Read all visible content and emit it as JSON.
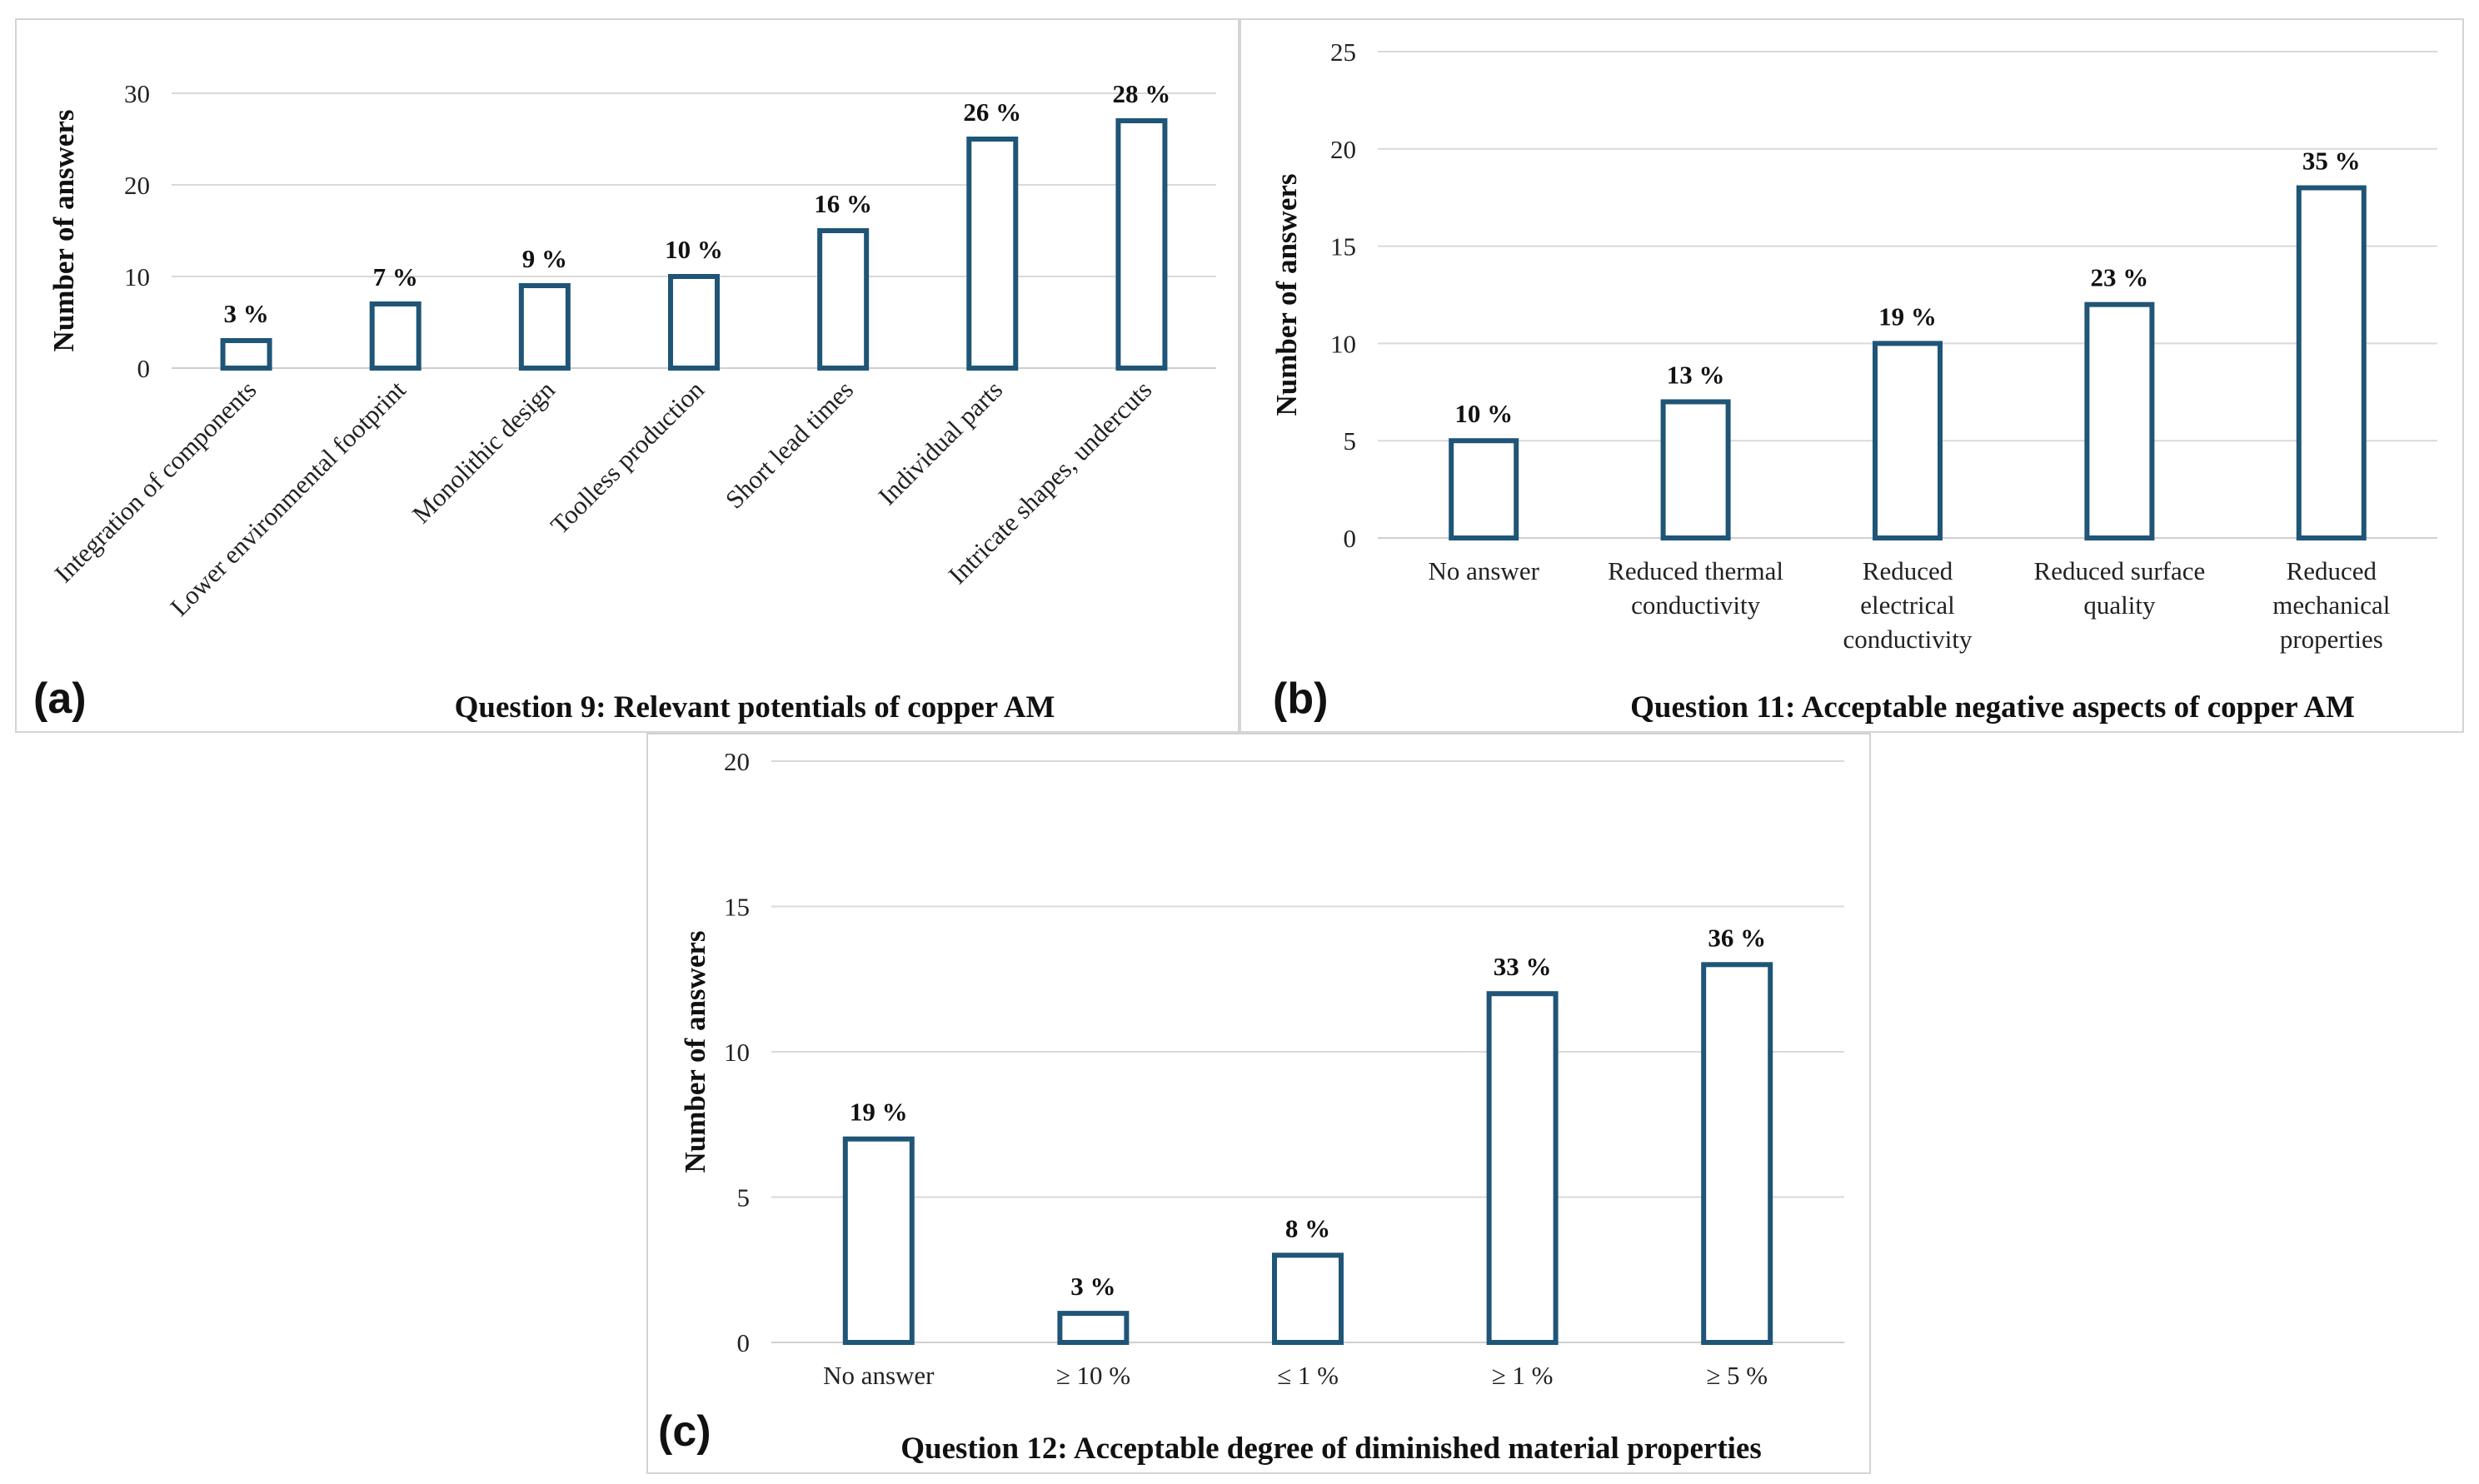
{
  "chart_data": [
    {
      "type": "bar",
      "panel_label": "(a)",
      "title": "Question 9: Relevant potentials of copper AM",
      "ylabel": "Number of answers",
      "xlabel": "",
      "ylim": [
        0,
        30
      ],
      "yticks": [
        0,
        10,
        20,
        30
      ],
      "categories": [
        "Integration of components",
        "Lower environmental footprint",
        "Monolithic design",
        "Toolless production",
        "Short lead times",
        "Individual parts",
        "Intricate shapes, undercuts"
      ],
      "values": [
        3,
        7,
        9,
        10,
        15,
        25,
        27
      ],
      "data_labels": [
        "3 %",
        "7 %",
        "9 %",
        "10 %",
        "16 %",
        "26 %",
        "28 %"
      ],
      "grid": true,
      "colors": {
        "bar_outline": "#1f5577",
        "bar_fill": "#ffffff",
        "grid": "#d9d9d9"
      }
    },
    {
      "type": "bar",
      "panel_label": "(b)",
      "title": "Question 11: Acceptable negative aspects of copper AM",
      "ylabel": "Number of answers",
      "xlabel": "",
      "ylim": [
        0,
        25
      ],
      "yticks": [
        0,
        5,
        10,
        15,
        20,
        25
      ],
      "categories": [
        [
          "No answer"
        ],
        [
          "Reduced thermal",
          "conductivity"
        ],
        [
          "Reduced",
          "electrical",
          "conductivity"
        ],
        [
          "Reduced surface",
          "quality"
        ],
        [
          "Reduced",
          "mechanical",
          "properties"
        ]
      ],
      "values": [
        5,
        7,
        10,
        12,
        18
      ],
      "data_labels": [
        "10 %",
        "13 %",
        "19 %",
        "23 %",
        "35 %"
      ],
      "grid": true,
      "colors": {
        "bar_outline": "#1f5577",
        "bar_fill": "#ffffff",
        "grid": "#d9d9d9"
      }
    },
    {
      "type": "bar",
      "panel_label": "(c)",
      "title": "Question 12: Acceptable degree of diminished material properties",
      "ylabel": "Number of answers",
      "xlabel": "",
      "ylim": [
        0,
        20
      ],
      "yticks": [
        0,
        5,
        10,
        15,
        20
      ],
      "categories": [
        [
          "No answer"
        ],
        [
          "≥ 10 %"
        ],
        [
          "≤ 1 %"
        ],
        [
          "≥ 1 %"
        ],
        [
          "≥ 5 %"
        ]
      ],
      "values": [
        7,
        1,
        3,
        12,
        13
      ],
      "data_labels": [
        "19 %",
        "3 %",
        "8 %",
        "33 %",
        "36 %"
      ],
      "grid": true,
      "colors": {
        "bar_outline": "#1f5577",
        "bar_fill": "#ffffff",
        "grid": "#d9d9d9"
      }
    }
  ]
}
